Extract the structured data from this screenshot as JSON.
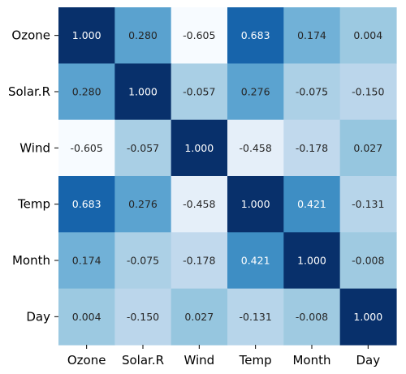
{
  "chart_data": {
    "type": "heatmap",
    "title": "",
    "xlabel": "",
    "ylabel": "",
    "x_categories": [
      "Ozone",
      "Solar.R",
      "Wind",
      "Temp",
      "Month",
      "Day"
    ],
    "y_categories": [
      "Ozone",
      "Solar.R",
      "Wind",
      "Temp",
      "Month",
      "Day"
    ],
    "values": [
      [
        1.0,
        0.28,
        -0.605,
        0.683,
        0.174,
        0.004
      ],
      [
        0.28,
        1.0,
        -0.057,
        0.276,
        -0.075,
        -0.15
      ],
      [
        -0.605,
        -0.057,
        1.0,
        -0.458,
        -0.178,
        0.027
      ],
      [
        0.683,
        0.276,
        -0.458,
        1.0,
        0.421,
        -0.131
      ],
      [
        0.174,
        -0.075,
        -0.178,
        0.421,
        1.0,
        -0.008
      ],
      [
        0.004,
        -0.15,
        0.027,
        -0.131,
        -0.008,
        1.0
      ]
    ],
    "value_labels": [
      [
        "1.000",
        "0.280",
        "-0.605",
        "0.683",
        "0.174",
        "0.004"
      ],
      [
        "0.280",
        "1.000",
        "-0.057",
        "0.276",
        "-0.075",
        "-0.150"
      ],
      [
        "-0.605",
        "-0.057",
        "1.000",
        "-0.458",
        "-0.178",
        "0.027"
      ],
      [
        "0.683",
        "0.276",
        "-0.458",
        "1.000",
        "0.421",
        "-0.131"
      ],
      [
        "0.174",
        "-0.075",
        "-0.178",
        "0.421",
        "1.000",
        "-0.008"
      ],
      [
        "0.004",
        "-0.150",
        "0.027",
        "-0.131",
        "-0.008",
        "1.000"
      ]
    ],
    "color_scale": {
      "name": "Blues",
      "vmin": -0.605,
      "vmax": 1.0,
      "stops": [
        "#f7fbff",
        "#deebf7",
        "#c6dbef",
        "#9ecae1",
        "#6baed6",
        "#4292c6",
        "#2171b5",
        "#08519c",
        "#08306b"
      ]
    },
    "colorbar": false,
    "grid": false
  }
}
